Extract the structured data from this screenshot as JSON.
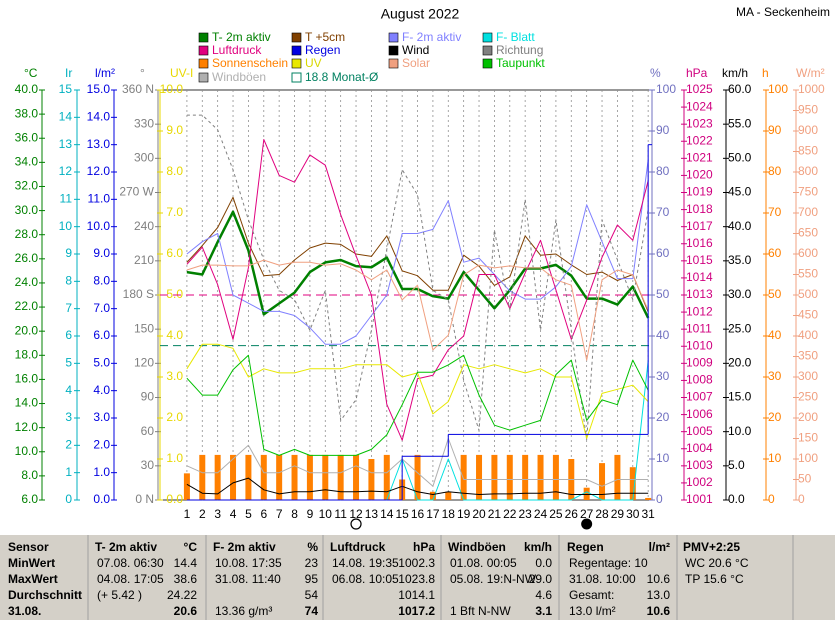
{
  "chart_data": {
    "type": "line",
    "title": "August 2022",
    "station": "MA - Seckenheim",
    "x": [
      1,
      2,
      3,
      4,
      5,
      6,
      7,
      8,
      9,
      10,
      11,
      12,
      13,
      14,
      15,
      16,
      17,
      18,
      19,
      20,
      21,
      22,
      23,
      24,
      25,
      26,
      27,
      28,
      29,
      30,
      31
    ],
    "xlim": [
      -0.75,
      31.25
    ],
    "xticks": [
      1,
      2,
      3,
      4,
      5,
      6,
      7,
      8,
      9,
      10,
      11,
      12,
      13,
      14,
      15,
      16,
      17,
      18,
      19,
      20,
      21,
      22,
      23,
      24,
      25,
      26,
      27,
      28,
      29,
      30,
      31
    ],
    "grid": true,
    "full_moon_day": 12,
    "new_moon_day": 27,
    "axes": [
      {
        "id": "temp",
        "side": "left",
        "unit": "°C",
        "color": "#008000",
        "lim": [
          6,
          40
        ],
        "ticks": [
          {
            "value": 6,
            "label": "6.0"
          },
          {
            "value": 8,
            "label": "8.0"
          },
          {
            "value": 10,
            "label": "10.0"
          },
          {
            "value": 12,
            "label": "12.0"
          },
          {
            "value": 14,
            "label": "14.0"
          },
          {
            "value": 16,
            "label": "16.0"
          },
          {
            "value": 18,
            "label": "18.0"
          },
          {
            "value": 20,
            "label": "20.0"
          },
          {
            "value": 22,
            "label": "22.0"
          },
          {
            "value": 24,
            "label": "24.0"
          },
          {
            "value": 26,
            "label": "26.0"
          },
          {
            "value": 28,
            "label": "28.0"
          },
          {
            "value": 30,
            "label": "30.0"
          },
          {
            "value": 32,
            "label": "32.0"
          },
          {
            "value": 34,
            "label": "34.0"
          },
          {
            "value": 36,
            "label": "36.0"
          },
          {
            "value": 38,
            "label": "38.0"
          },
          {
            "value": 40,
            "label": "40.0"
          }
        ]
      },
      {
        "id": "ir",
        "side": "left",
        "unit": "Ir",
        "color": "#00b0c0",
        "lim": [
          0,
          15
        ],
        "ticks": [
          0,
          1,
          2,
          3,
          4,
          5,
          6,
          7,
          8,
          9,
          10,
          11,
          12,
          13,
          14,
          15
        ]
      },
      {
        "id": "rain",
        "side": "left",
        "unit": "l/m²",
        "color": "#0000e0",
        "lim": [
          0,
          15
        ],
        "ticks": [
          {
            "value": 0,
            "label": "0.0"
          },
          {
            "value": 1,
            "label": "1.0"
          },
          {
            "value": 2,
            "label": "2.0"
          },
          {
            "value": 3,
            "label": "3.0"
          },
          {
            "value": 4,
            "label": "4.0"
          },
          {
            "value": 5,
            "label": "5.0"
          },
          {
            "value": 6,
            "label": "6.0"
          },
          {
            "value": 7,
            "label": "7.0"
          },
          {
            "value": 8,
            "label": "8.0"
          },
          {
            "value": 9,
            "label": "9.0"
          },
          {
            "value": 10,
            "label": "10.0"
          },
          {
            "value": 11,
            "label": "11.0"
          },
          {
            "value": 12,
            "label": "12.0"
          },
          {
            "value": 13,
            "label": "13.0"
          },
          {
            "value": 14,
            "label": "14.0"
          },
          {
            "value": 15,
            "label": "15.0"
          }
        ]
      },
      {
        "id": "dir",
        "side": "left",
        "unit": "°",
        "color": "#808080",
        "lim": [
          0,
          360
        ],
        "ticks": [
          {
            "value": 0,
            "label": "0 N"
          },
          30,
          60,
          90,
          120,
          150,
          {
            "value": 180,
            "label": "180 S"
          },
          210,
          240,
          {
            "value": 270,
            "label": "270 W"
          },
          300,
          330,
          {
            "value": 360,
            "label": "360 N"
          }
        ]
      },
      {
        "id": "uv",
        "side": "left",
        "unit": "UV-I",
        "color": "#e8d800",
        "lim": [
          0,
          10
        ],
        "ticks": [
          {
            "value": 0,
            "label": "0.0"
          },
          {
            "value": 1,
            "label": "1.0"
          },
          {
            "value": 2,
            "label": "2.0"
          },
          {
            "value": 3,
            "label": "3.0"
          },
          {
            "value": 4,
            "label": "4.0"
          },
          {
            "value": 5,
            "label": "5.0"
          },
          {
            "value": 6,
            "label": "6.0"
          },
          {
            "value": 7,
            "label": "7.0"
          },
          {
            "value": 8,
            "label": "8.0"
          },
          {
            "value": 9,
            "label": "9.0"
          },
          {
            "value": 10,
            "label": "10.0"
          }
        ]
      },
      {
        "id": "pct",
        "side": "right",
        "unit": "%",
        "color": "#7070c0",
        "lim": [
          0,
          100
        ],
        "ticks": [
          0,
          10,
          20,
          30,
          40,
          50,
          60,
          70,
          80,
          90,
          100
        ]
      },
      {
        "id": "hpa",
        "side": "right",
        "unit": "hPa",
        "color": "#d0007f",
        "lim": [
          1001,
          1025
        ],
        "ticks": [
          1001,
          1002,
          1003,
          1004,
          1005,
          1006,
          1007,
          1008,
          1009,
          1010,
          1011,
          1012,
          1013,
          1014,
          1015,
          1016,
          1017,
          1018,
          1019,
          1020,
          1021,
          1022,
          1023,
          1024,
          1025
        ]
      },
      {
        "id": "kmh",
        "side": "right",
        "unit": "km/h",
        "color": "#000000",
        "lim": [
          0,
          60
        ],
        "ticks": [
          {
            "value": 0,
            "label": "0.0"
          },
          {
            "value": 5,
            "label": "5.0"
          },
          {
            "value": 10,
            "label": "10.0"
          },
          {
            "value": 15,
            "label": "15.0"
          },
          {
            "value": 20,
            "label": "20.0"
          },
          {
            "value": 25,
            "label": "25.0"
          },
          {
            "value": 30,
            "label": "30.0"
          },
          {
            "value": 35,
            "label": "35.0"
          },
          {
            "value": 40,
            "label": "40.0"
          },
          {
            "value": 45,
            "label": "45.0"
          },
          {
            "value": 50,
            "label": "50.0"
          },
          {
            "value": 55,
            "label": "55.0"
          },
          {
            "value": 60,
            "label": "60.0"
          }
        ]
      },
      {
        "id": "h",
        "side": "right",
        "unit": "h",
        "color": "#ff8000",
        "lim": [
          0,
          100
        ],
        "ticks": [
          0,
          10,
          20,
          30,
          40,
          50,
          60,
          70,
          80,
          90,
          100
        ]
      },
      {
        "id": "wm2",
        "side": "right",
        "unit": "W/m²",
        "color": "#f0a080",
        "lim": [
          0,
          1000
        ],
        "ticks": [
          0,
          50,
          100,
          150,
          200,
          250,
          300,
          350,
          400,
          450,
          500,
          550,
          600,
          650,
          700,
          750,
          800,
          850,
          900,
          950,
          1000
        ]
      }
    ],
    "reference_lines": [
      {
        "axis": "hpa",
        "value": 1013,
        "color": "#e0007f"
      }
    ],
    "series": [
      {
        "name": "T- 2m aktiv",
        "color": "#008000",
        "axis": "temp",
        "kind": "line",
        "width": 2.5,
        "values": [
          24.9,
          24.7,
          27.4,
          29.9,
          26.7,
          21.4,
          22.3,
          23.2,
          24.9,
          25.7,
          25.9,
          25.4,
          25.3,
          26.1,
          23.5,
          23.5,
          22.9,
          22.7,
          24.9,
          23.4,
          21.9,
          23.4,
          25.2,
          25.2,
          25.5,
          24.6,
          22.7,
          22.7,
          22.2,
          23.7,
          21.1
        ]
      },
      {
        "name": "T +5cm",
        "color": "#804000",
        "axis": "temp",
        "kind": "line",
        "width": 1,
        "values": [
          25.7,
          27.1,
          28.6,
          31.1,
          27.3,
          24.6,
          24.7,
          25.9,
          26.9,
          27.3,
          27.2,
          26.4,
          26.2,
          27.9,
          25.0,
          24.6,
          23.4,
          23.4,
          26.3,
          25.4,
          23.8,
          24.5,
          27.9,
          26.3,
          26.4,
          25.5,
          24.7,
          24.9,
          24.2,
          24.7,
          21.6
        ]
      },
      {
        "name": "F- 2m aktiv",
        "color": "#8080ff",
        "axis": "pct",
        "kind": "line",
        "width": 1,
        "values": [
          60,
          63,
          65,
          50,
          48,
          46,
          46,
          45,
          42,
          38,
          38,
          40,
          45,
          50,
          65,
          65,
          66,
          73,
          58,
          59,
          55,
          51,
          49,
          49,
          52,
          57,
          72,
          63,
          54,
          54,
          83
        ]
      },
      {
        "name": "F- Blatt",
        "color": "#00e0e0",
        "axis": "pct",
        "kind": "line",
        "width": 1,
        "values": [
          0,
          0,
          0,
          0,
          0,
          0,
          0,
          0,
          0,
          0,
          0,
          0,
          0,
          0,
          10,
          0,
          0,
          10,
          0,
          0,
          0,
          0,
          0,
          0,
          0,
          0,
          2,
          0,
          0,
          0,
          34
        ]
      },
      {
        "name": "Luftdruck",
        "color": "#e0007f",
        "axis": "hpa",
        "kind": "line",
        "width": 1,
        "values": [
          1014.8,
          1015.8,
          1013.6,
          1010.4,
          1014.6,
          1022.1,
          1020.0,
          1019.6,
          1021.2,
          1020.6,
          1017.7,
          1015.3,
          1013.0,
          1006.6,
          1004.5,
          1008.1,
          1008.3,
          1009.8,
          1010.6,
          1014.2,
          1014.2,
          1012.2,
          1014.3,
          1016.2,
          1013.3,
          1010.4,
          1012.7,
          1015.2,
          1017.1,
          1016.2,
          1019.7
        ]
      },
      {
        "name": "Regen",
        "color": "#0000e0",
        "axis": "rain",
        "kind": "step",
        "width": 1,
        "values": [
          0,
          0,
          0,
          0,
          0,
          0,
          0,
          0,
          0,
          0,
          0,
          0,
          0,
          0,
          1.6,
          1.6,
          1.6,
          2.4,
          2.4,
          2.4,
          2.4,
          2.4,
          2.4,
          2.4,
          2.4,
          2.4,
          2.4,
          2.4,
          2.4,
          2.4,
          13.0
        ]
      },
      {
        "name": "Wind",
        "color": "#000000",
        "axis": "kmh",
        "kind": "line",
        "width": 1,
        "values": [
          2.3,
          1.0,
          0.9,
          2.5,
          3.2,
          1.5,
          0.9,
          1.2,
          1.2,
          1.5,
          1.2,
          1.2,
          1.3,
          1.2,
          2.0,
          1.2,
          0.8,
          1.2,
          1.0,
          0.8,
          0.9,
          0.9,
          1.0,
          1.0,
          1.2,
          0.8,
          0.8,
          0.8,
          1.0,
          1.0,
          1.0
        ]
      },
      {
        "name": "Richtung",
        "color": "#808080",
        "axis": "dir",
        "kind": "line",
        "width": 1,
        "dash": "3,3",
        "values": [
          338,
          338,
          325,
          290,
          246,
          211,
          184,
          176,
          149,
          184,
          70,
          88,
          149,
          220,
          290,
          268,
          184,
          176,
          105,
          61,
          237,
          167,
          264,
          149,
          246,
          149,
          53,
          246,
          211,
          176,
          255
        ]
      },
      {
        "name": "Sonnenschein",
        "color": "#ff8000",
        "axis": "h",
        "kind": "bar",
        "values": [
          6.5,
          11,
          11,
          11,
          11,
          11,
          11,
          11,
          11,
          11,
          11,
          11,
          10,
          11,
          5,
          11,
          2,
          2,
          11,
          11,
          11,
          11,
          11,
          11,
          11,
          10,
          3,
          9,
          11,
          8,
          0.5
        ]
      },
      {
        "name": "UV",
        "color": "#e8e800",
        "axis": "uv",
        "kind": "line",
        "width": 1,
        "values": [
          3.2,
          3.8,
          3.8,
          3.7,
          3.0,
          3.2,
          3.1,
          3.1,
          3.2,
          3.2,
          3.2,
          3.3,
          3.3,
          3.3,
          3.0,
          3.1,
          2.1,
          2.4,
          3.3,
          3.2,
          3.3,
          3.2,
          3.1,
          3.2,
          3.0,
          3.0,
          1.5,
          2.6,
          2.7,
          2.8,
          2.4
        ]
      },
      {
        "name": "Solar",
        "color": "#f0a080",
        "axis": "wm2",
        "kind": "line",
        "width": 1,
        "values": [
          561,
          573,
          573,
          571,
          571,
          585,
          573,
          580,
          580,
          573,
          576,
          561,
          537,
          561,
          488,
          524,
          366,
          402,
          549,
          573,
          566,
          571,
          566,
          566,
          537,
          524,
          341,
          537,
          561,
          549,
          463
        ]
      },
      {
        "name": "Taupunkt",
        "color": "#00c000",
        "axis": "temp",
        "kind": "line",
        "width": 1,
        "values": [
          16.1,
          14.7,
          14.7,
          16.8,
          18.0,
          10.2,
          9.7,
          10.2,
          9.7,
          9.7,
          9.7,
          9.7,
          10.2,
          11.4,
          13.9,
          16.6,
          16.6,
          17.2,
          18.0,
          14.7,
          12.2,
          11.8,
          12.2,
          12.6,
          16.4,
          17.6,
          12.6,
          14.3,
          13.9,
          17.6,
          15.1
        ]
      },
      {
        "name": "Windböen",
        "color": "#b0b0b0",
        "axis": "kmh",
        "kind": "line",
        "width": 1,
        "values": [
          5,
          4,
          4,
          6,
          8,
          4,
          4,
          5,
          4,
          4,
          4,
          5,
          4,
          4,
          6,
          4,
          2,
          9,
          3,
          3,
          3,
          3,
          3,
          3,
          3,
          3,
          3,
          2,
          3,
          3,
          3
        ]
      },
      {
        "name": "18.8 Monat-Ø",
        "color": "#008060",
        "axis": "temp",
        "kind": "hline",
        "value": 18.8
      }
    ]
  },
  "table": {
    "blocks": [
      {
        "title": "Sensor",
        "rows": [
          [
            "MinWert"
          ],
          [
            "MaxWert"
          ],
          [
            "Durchschnitt"
          ],
          [
            "31.08."
          ]
        ]
      },
      {
        "title": "T- 2m aktiv",
        "unit": "°C",
        "rows": [
          [
            "07.08. 06:30",
            "14.4"
          ],
          [
            "04.08. 17:05",
            "38.6"
          ],
          [
            "(+ 5.42 )",
            "24.22"
          ],
          [
            null,
            "20.6"
          ]
        ]
      },
      {
        "title": "F- 2m aktiv",
        "unit": "%",
        "rows": [
          [
            "10.08. 17:35",
            "23"
          ],
          [
            "31.08. 11:40",
            "95"
          ],
          [
            null,
            "54"
          ],
          [
            "13.36 g/m³",
            "74"
          ]
        ]
      },
      {
        "title": "Luftdruck",
        "unit": "hPa",
        "rows": [
          [
            "14.08. 19:35",
            "1002.3"
          ],
          [
            "06.08. 10:05",
            "1023.8"
          ],
          [
            null,
            "1014.1"
          ],
          [
            null,
            "1017.2"
          ]
        ]
      },
      {
        "title": "Windböen",
        "unit": "km/h",
        "rows": [
          [
            "01.08. 00:05",
            "0.0"
          ],
          [
            "05.08. 19:N-NW",
            "29.0"
          ],
          [
            null,
            "4.6"
          ],
          [
            "1 Bft N-NW",
            "3.1"
          ]
        ]
      },
      {
        "title": "Regen",
        "unit": "l/m²",
        "rows": [
          [
            "Regentage: 10"
          ],
          [
            "31.08. 10:00",
            "10.6"
          ],
          [
            "Gesamt:",
            "13.0"
          ],
          [
            "13.0 l/m²",
            "10.6"
          ]
        ]
      },
      {
        "title": "PMV+2:25",
        "rows": [
          [
            "WC 20.6 °C"
          ],
          [
            "TP 15.6 °C"
          ]
        ]
      }
    ]
  }
}
